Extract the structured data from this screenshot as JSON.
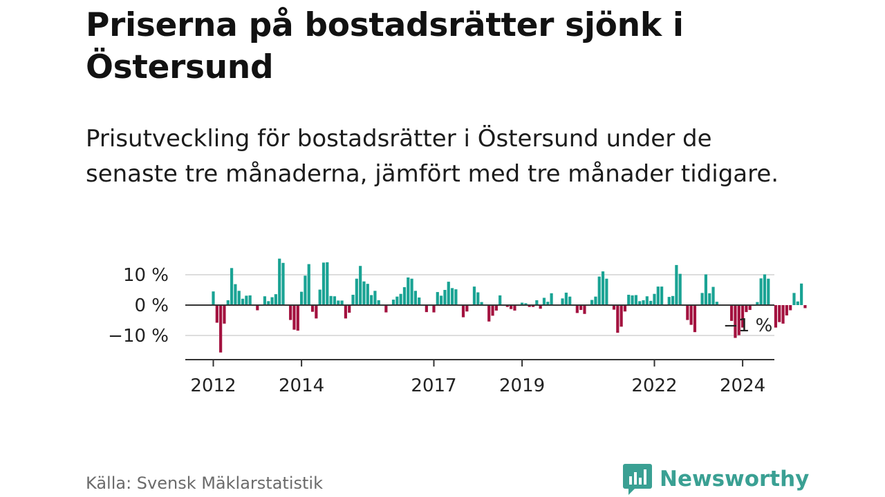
{
  "title": "Priserna på bostadsrätter sjönk i Östersund",
  "subtitle": "Prisutveckling för bostadsrätter i Östersund under de senaste tre månaderna, jämfört med tre månader tidigare.",
  "source": "Källa: Svensk Mäklarstatistik",
  "brand": "Newsworthy",
  "colors": {
    "positive": "#1aa394",
    "negative": "#a3123f",
    "axis": "#333333",
    "grid": "#dddddd",
    "brand": "#3aa093"
  },
  "chart_data": {
    "type": "bar",
    "title": "",
    "xlabel": "",
    "ylabel": "",
    "ylim": [
      -17,
      17
    ],
    "x_start": 2012.0,
    "x_step": 0.08333,
    "y_ticks": [
      {
        "value": 10,
        "label": "10 %"
      },
      {
        "value": 0,
        "label": "0 %"
      },
      {
        "value": -10,
        "label": "−10 %"
      }
    ],
    "x_ticks": [
      {
        "value": 2012,
        "label": "2012"
      },
      {
        "value": 2014,
        "label": "2014"
      },
      {
        "value": 2017,
        "label": "2017"
      },
      {
        "value": 2019,
        "label": "2019"
      },
      {
        "value": 2022,
        "label": "2022"
      },
      {
        "value": 2024,
        "label": "2024"
      }
    ],
    "annotation": {
      "label": "−1 %",
      "value": -1
    },
    "values": [
      4.5,
      -5.8,
      -15.6,
      -6.1,
      1.6,
      12.2,
      6.9,
      4.7,
      2.1,
      3.1,
      3.2,
      0,
      -1.7,
      0,
      2.9,
      1.3,
      2.6,
      3.6,
      15.3,
      13.9,
      0,
      -4.9,
      -8.1,
      -8.4,
      4.4,
      9.7,
      13.5,
      -2.2,
      -4.4,
      5.1,
      14.0,
      14.1,
      3.0,
      2.9,
      1.5,
      1.5,
      -4.4,
      -2.5,
      3.4,
      8.7,
      12.9,
      7.8,
      7.0,
      3.3,
      4.7,
      1.6,
      0,
      -2.4,
      0,
      1.8,
      2.8,
      3.7,
      5.9,
      9.1,
      8.7,
      4.7,
      2.5,
      0,
      -2.3,
      0,
      -2.4,
      4.3,
      3.1,
      5.0,
      7.7,
      5.6,
      5.2,
      0,
      -4.0,
      -2.1,
      0,
      6.1,
      4.2,
      1.0,
      0,
      -5.4,
      -3.5,
      -1.8,
      3.2,
      0,
      -0.6,
      -1.3,
      -1.8,
      0,
      0.8,
      0.6,
      -0.6,
      -0.6,
      1.6,
      -1.2,
      2.4,
      1.1,
      3.9,
      0,
      0,
      2.2,
      4.1,
      2.8,
      0,
      -2.6,
      -1.6,
      -2.9,
      0,
      1.7,
      2.8,
      9.4,
      11.1,
      8.7,
      0,
      -1.5,
      -9.1,
      -7.1,
      -2.1,
      3.4,
      3.2,
      3.3,
      1.3,
      1.6,
      2.9,
      1.4,
      3.7,
      6.1,
      6.1,
      0,
      2.7,
      3.0,
      13.2,
      10.3,
      0,
      -4.9,
      -6.5,
      -8.9,
      0,
      4.0,
      10.1,
      3.9,
      6.0,
      1.1,
      0,
      0,
      0,
      -5.2,
      -10.8,
      -9.9,
      -7.4,
      -2.3,
      -1.6,
      0,
      1.0,
      8.8,
      10.1,
      8.7,
      0,
      -7.4,
      -5.6,
      -6.1,
      -3.4,
      -1.7,
      4.0,
      1.2,
      7.1,
      -1.0
    ]
  }
}
